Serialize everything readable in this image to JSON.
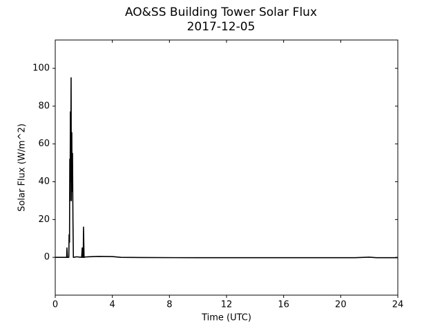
{
  "chart_data": {
    "type": "line",
    "title": "AO&SS Building Tower Solar Flux",
    "subtitle": "2017-12-05",
    "xlabel": "Time (UTC)",
    "ylabel": "Solar Flux (W/m^2)",
    "x": [
      0,
      0.8,
      0.82,
      0.85,
      0.95,
      0.97,
      1.0,
      1.02,
      1.04,
      1.06,
      1.08,
      1.11,
      1.13,
      1.16,
      1.18,
      1.21,
      1.24,
      1.27,
      1.5,
      1.85,
      1.89,
      1.92,
      1.96,
      1.98,
      2.02,
      2.1,
      3,
      4,
      4.6,
      6,
      10,
      16,
      21,
      22,
      22.5,
      24
    ],
    "series": [
      {
        "name": "Solar Flux",
        "color": "#000000",
        "values": [
          0,
          0,
          5,
          0,
          0,
          12,
          8,
          52,
          30,
          77,
          40,
          95,
          30,
          66,
          35,
          55,
          20,
          0,
          0.3,
          0,
          5,
          0,
          0,
          16,
          0,
          0.2,
          0.5,
          0.4,
          0,
          -0.1,
          -0.2,
          -0.2,
          -0.2,
          0.1,
          -0.2,
          -0.2
        ]
      }
    ],
    "xlim": [
      0,
      24
    ],
    "xticks": [
      0,
      4,
      8,
      12,
      16,
      20,
      24
    ],
    "ylim": [
      -20,
      115
    ],
    "yticks": [
      0,
      20,
      40,
      60,
      80,
      100
    ],
    "grid": false
  }
}
